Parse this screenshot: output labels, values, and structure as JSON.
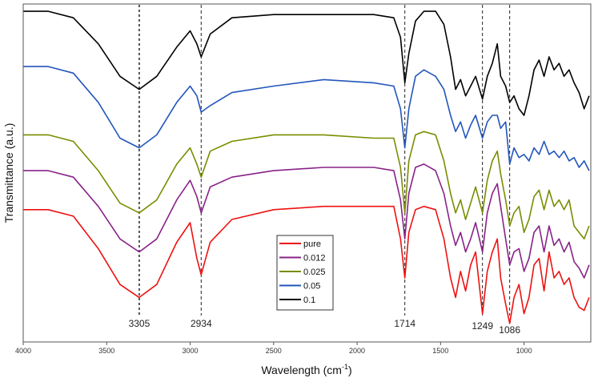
{
  "chart_data": {
    "type": "line",
    "title": "",
    "xlabel": "Wavelength (cm",
    "xlabel_sup": "-1",
    "xlabel_close": ")",
    "ylabel": "Transmittance (a.u.)",
    "xlim": [
      4000,
      600
    ],
    "x_reversed": true,
    "ylim": [
      0,
      100
    ],
    "x_ticks": [
      4000,
      3500,
      3000,
      2500,
      2000,
      1500,
      1000
    ],
    "legend_position": "center-bottom",
    "peak_markers": [
      {
        "x": 3305,
        "label": "3305"
      },
      {
        "x": 2934,
        "label": "2934"
      },
      {
        "x": 1714,
        "label": "1714"
      },
      {
        "x": 1249,
        "label": "1249"
      },
      {
        "x": 1086,
        "label": "1086"
      }
    ],
    "series": [
      {
        "name": "0.1",
        "color": "#000000",
        "points": [
          [
            4000,
            98
          ],
          [
            3850,
            98
          ],
          [
            3700,
            96
          ],
          [
            3550,
            88
          ],
          [
            3420,
            78
          ],
          [
            3305,
            74
          ],
          [
            3200,
            78
          ],
          [
            3080,
            87
          ],
          [
            3000,
            92
          ],
          [
            2960,
            88
          ],
          [
            2934,
            84
          ],
          [
            2880,
            91
          ],
          [
            2750,
            96
          ],
          [
            2500,
            97
          ],
          [
            2200,
            97
          ],
          [
            1900,
            97
          ],
          [
            1780,
            96
          ],
          [
            1740,
            90
          ],
          [
            1714,
            76
          ],
          [
            1690,
            85
          ],
          [
            1650,
            95
          ],
          [
            1600,
            98
          ],
          [
            1530,
            98
          ],
          [
            1480,
            94
          ],
          [
            1440,
            84
          ],
          [
            1410,
            74
          ],
          [
            1380,
            77
          ],
          [
            1350,
            72
          ],
          [
            1320,
            75
          ],
          [
            1290,
            78
          ],
          [
            1249,
            71
          ],
          [
            1220,
            78
          ],
          [
            1190,
            82
          ],
          [
            1160,
            88
          ],
          [
            1140,
            78
          ],
          [
            1110,
            75
          ],
          [
            1086,
            70
          ],
          [
            1060,
            72
          ],
          [
            1030,
            68
          ],
          [
            1000,
            66
          ],
          [
            970,
            72
          ],
          [
            940,
            80
          ],
          [
            910,
            83
          ],
          [
            880,
            78
          ],
          [
            850,
            84
          ],
          [
            820,
            80
          ],
          [
            790,
            82
          ],
          [
            760,
            78
          ],
          [
            730,
            80
          ],
          [
            700,
            76
          ],
          [
            670,
            73
          ],
          [
            640,
            68
          ],
          [
            610,
            72
          ]
        ]
      },
      {
        "name": "0.05",
        "color": "#2255bb",
        "points": [
          [
            4000,
            81
          ],
          [
            3850,
            81
          ],
          [
            3700,
            79
          ],
          [
            3550,
            70
          ],
          [
            3420,
            59
          ],
          [
            3305,
            56
          ],
          [
            3200,
            60
          ],
          [
            3080,
            70
          ],
          [
            3000,
            75
          ],
          [
            2960,
            72
          ],
          [
            2934,
            67
          ],
          [
            2880,
            69
          ],
          [
            2750,
            73
          ],
          [
            2500,
            75
          ],
          [
            2200,
            77
          ],
          [
            1900,
            76
          ],
          [
            1780,
            75
          ],
          [
            1740,
            68
          ],
          [
            1714,
            56
          ],
          [
            1690,
            68
          ],
          [
            1650,
            78
          ],
          [
            1600,
            80
          ],
          [
            1530,
            78
          ],
          [
            1480,
            74
          ],
          [
            1440,
            66
          ],
          [
            1410,
            61
          ],
          [
            1380,
            64
          ],
          [
            1350,
            59
          ],
          [
            1320,
            63
          ],
          [
            1290,
            66
          ],
          [
            1249,
            59
          ],
          [
            1220,
            64
          ],
          [
            1190,
            66
          ],
          [
            1160,
            66
          ],
          [
            1140,
            62
          ],
          [
            1110,
            64
          ],
          [
            1086,
            51
          ],
          [
            1060,
            56
          ],
          [
            1030,
            53
          ],
          [
            1000,
            54
          ],
          [
            970,
            52
          ],
          [
            940,
            56
          ],
          [
            910,
            54
          ],
          [
            880,
            58
          ],
          [
            850,
            54
          ],
          [
            820,
            55
          ],
          [
            790,
            53
          ],
          [
            760,
            55
          ],
          [
            730,
            52
          ],
          [
            700,
            53
          ],
          [
            670,
            50
          ],
          [
            640,
            52
          ],
          [
            610,
            49
          ]
        ]
      },
      {
        "name": "0.025",
        "color": "#7a8c00",
        "points": [
          [
            4000,
            60
          ],
          [
            3850,
            60
          ],
          [
            3700,
            58
          ],
          [
            3550,
            49
          ],
          [
            3420,
            39
          ],
          [
            3305,
            36
          ],
          [
            3200,
            40
          ],
          [
            3080,
            51
          ],
          [
            3000,
            56
          ],
          [
            2960,
            51
          ],
          [
            2934,
            47
          ],
          [
            2880,
            55
          ],
          [
            2750,
            58
          ],
          [
            2500,
            60
          ],
          [
            2200,
            60
          ],
          [
            1900,
            59
          ],
          [
            1780,
            59
          ],
          [
            1740,
            50
          ],
          [
            1714,
            36
          ],
          [
            1690,
            52
          ],
          [
            1650,
            60
          ],
          [
            1600,
            61
          ],
          [
            1530,
            60
          ],
          [
            1480,
            52
          ],
          [
            1440,
            42
          ],
          [
            1410,
            36
          ],
          [
            1380,
            40
          ],
          [
            1350,
            34
          ],
          [
            1320,
            39
          ],
          [
            1290,
            44
          ],
          [
            1249,
            36
          ],
          [
            1220,
            46
          ],
          [
            1190,
            52
          ],
          [
            1160,
            55
          ],
          [
            1140,
            48
          ],
          [
            1110,
            40
          ],
          [
            1086,
            32
          ],
          [
            1060,
            36
          ],
          [
            1030,
            38
          ],
          [
            1000,
            30
          ],
          [
            970,
            34
          ],
          [
            940,
            41
          ],
          [
            910,
            43
          ],
          [
            880,
            37
          ],
          [
            850,
            43
          ],
          [
            820,
            38
          ],
          [
            790,
            40
          ],
          [
            760,
            37
          ],
          [
            730,
            40
          ],
          [
            700,
            32
          ],
          [
            670,
            30
          ],
          [
            640,
            28
          ],
          [
            610,
            32
          ]
        ]
      },
      {
        "name": "0.012",
        "color": "#882288",
        "points": [
          [
            4000,
            49
          ],
          [
            3850,
            49
          ],
          [
            3700,
            47
          ],
          [
            3550,
            38
          ],
          [
            3420,
            28
          ],
          [
            3305,
            24
          ],
          [
            3200,
            28
          ],
          [
            3080,
            40
          ],
          [
            3000,
            46
          ],
          [
            2960,
            41
          ],
          [
            2934,
            36
          ],
          [
            2880,
            44
          ],
          [
            2750,
            47
          ],
          [
            2500,
            49
          ],
          [
            2200,
            50
          ],
          [
            1900,
            50
          ],
          [
            1780,
            49
          ],
          [
            1740,
            40
          ],
          [
            1714,
            28
          ],
          [
            1690,
            42
          ],
          [
            1650,
            50
          ],
          [
            1600,
            51
          ],
          [
            1530,
            49
          ],
          [
            1480,
            42
          ],
          [
            1440,
            32
          ],
          [
            1410,
            26
          ],
          [
            1380,
            30
          ],
          [
            1350,
            24
          ],
          [
            1320,
            28
          ],
          [
            1290,
            33
          ],
          [
            1249,
            24
          ],
          [
            1220,
            36
          ],
          [
            1190,
            42
          ],
          [
            1160,
            45
          ],
          [
            1140,
            38
          ],
          [
            1110,
            28
          ],
          [
            1086,
            20
          ],
          [
            1060,
            24
          ],
          [
            1030,
            25
          ],
          [
            1000,
            18
          ],
          [
            970,
            22
          ],
          [
            940,
            30
          ],
          [
            910,
            32
          ],
          [
            880,
            24
          ],
          [
            850,
            32
          ],
          [
            820,
            26
          ],
          [
            790,
            28
          ],
          [
            760,
            24
          ],
          [
            730,
            27
          ],
          [
            700,
            21
          ],
          [
            670,
            19
          ],
          [
            640,
            16
          ],
          [
            610,
            20
          ]
        ]
      },
      {
        "name": "pure",
        "color": "#ee1111",
        "points": [
          [
            4000,
            37
          ],
          [
            3850,
            37
          ],
          [
            3700,
            35
          ],
          [
            3550,
            25
          ],
          [
            3420,
            14
          ],
          [
            3305,
            10
          ],
          [
            3200,
            14
          ],
          [
            3080,
            27
          ],
          [
            3000,
            33
          ],
          [
            2960,
            22
          ],
          [
            2934,
            17
          ],
          [
            2880,
            27
          ],
          [
            2750,
            34
          ],
          [
            2500,
            37
          ],
          [
            2200,
            38
          ],
          [
            1900,
            38
          ],
          [
            1780,
            38
          ],
          [
            1740,
            28
          ],
          [
            1714,
            16
          ],
          [
            1690,
            30
          ],
          [
            1650,
            37
          ],
          [
            1600,
            38
          ],
          [
            1530,
            37
          ],
          [
            1480,
            28
          ],
          [
            1440,
            16
          ],
          [
            1410,
            10
          ],
          [
            1380,
            18
          ],
          [
            1350,
            12
          ],
          [
            1320,
            20
          ],
          [
            1290,
            24
          ],
          [
            1249,
            5
          ],
          [
            1220,
            18
          ],
          [
            1190,
            24
          ],
          [
            1160,
            28
          ],
          [
            1140,
            16
          ],
          [
            1110,
            8
          ],
          [
            1086,
            2
          ],
          [
            1060,
            10
          ],
          [
            1030,
            14
          ],
          [
            1000,
            5
          ],
          [
            970,
            10
          ],
          [
            940,
            20
          ],
          [
            910,
            22
          ],
          [
            880,
            12
          ],
          [
            850,
            24
          ],
          [
            820,
            16
          ],
          [
            790,
            18
          ],
          [
            760,
            14
          ],
          [
            730,
            16
          ],
          [
            700,
            10
          ],
          [
            670,
            7
          ],
          [
            640,
            6
          ],
          [
            610,
            10
          ]
        ]
      }
    ]
  },
  "legend": {
    "items": [
      {
        "name": "pure",
        "color": "#ee1111"
      },
      {
        "name": "0.012",
        "color": "#882288"
      },
      {
        "name": "0.025",
        "color": "#7a8c00"
      },
      {
        "name": "0.05",
        "color": "#2255bb"
      },
      {
        "name": "0.1",
        "color": "#000000"
      }
    ]
  }
}
